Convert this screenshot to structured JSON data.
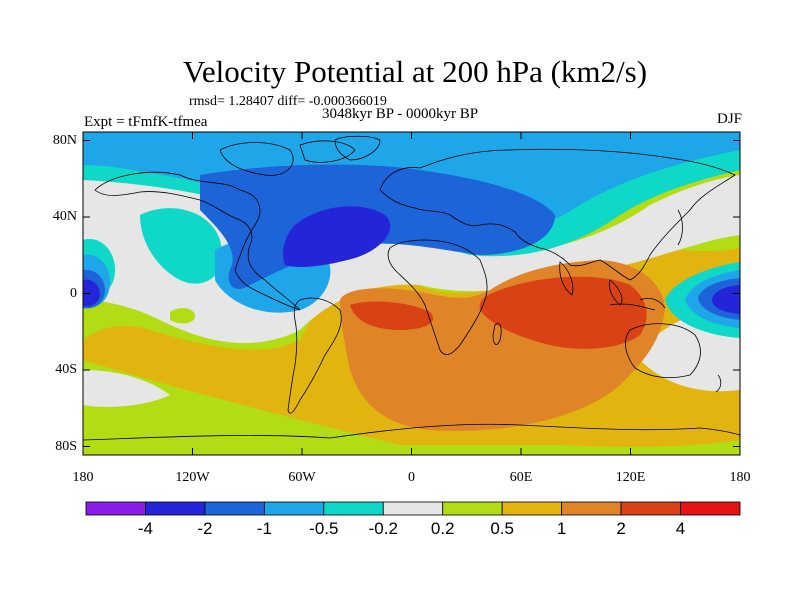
{
  "title": "Velocity Potential at 200 hPa (km2/s)",
  "stats": "rmsd= 1.28407 diff= -0.000366019",
  "subtitle": "3048kyr BP - 0000kyr BP",
  "left_label": "Expt = tFmfK-tfmea",
  "right_label": "DJF",
  "y_axis": [
    {
      "label": "80N",
      "value": 80
    },
    {
      "label": "40N",
      "value": 40
    },
    {
      "label": "0",
      "value": 0
    },
    {
      "label": "40S",
      "value": -40
    },
    {
      "label": "80S",
      "value": -80
    }
  ],
  "x_axis": [
    {
      "label": "180",
      "value": -180
    },
    {
      "label": "120W",
      "value": -120
    },
    {
      "label": "60W",
      "value": -60
    },
    {
      "label": "0",
      "value": 0
    },
    {
      "label": "60E",
      "value": 60
    },
    {
      "label": "120E",
      "value": 120
    },
    {
      "label": "180",
      "value": 180
    }
  ],
  "colorbar": {
    "colors": [
      "#8a1de6",
      "#2424d8",
      "#1c64d8",
      "#1ea6e8",
      "#10d8c8",
      "#e6e6e6",
      "#b2dc14",
      "#e2b410",
      "#e08428",
      "#d84214",
      "#e41414"
    ],
    "labels": [
      "-4",
      "-2",
      "-1",
      "-0.5",
      "-0.2",
      "0.2",
      "0.5",
      "1",
      "2",
      "4"
    ]
  }
}
